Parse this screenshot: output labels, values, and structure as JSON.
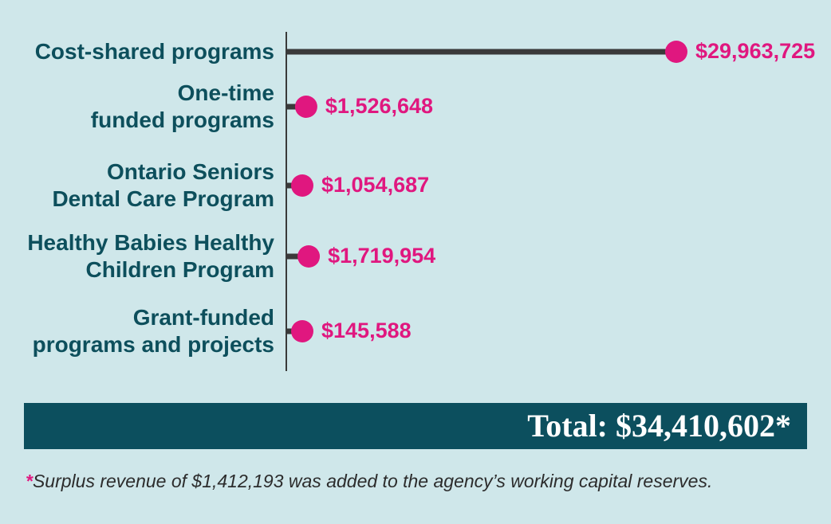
{
  "chart_data": {
    "type": "bar",
    "orientation": "horizontal",
    "style": "lollipop",
    "categories": [
      [
        "Cost-shared programs"
      ],
      [
        "One-time",
        "funded programs"
      ],
      [
        "Ontario Seniors",
        "Dental Care Program"
      ],
      [
        "Healthy Babies Healthy",
        "Children Program"
      ],
      [
        "Grant-funded",
        "programs and projects"
      ]
    ],
    "values": [
      29963725,
      1526648,
      1054687,
      1719954,
      145588
    ],
    "value_labels": [
      "$29,963,725",
      "$1,526,648",
      "$1,054,687",
      "$1,719,954",
      "$145,588"
    ],
    "xlim": [
      0,
      29963725
    ],
    "grid": false,
    "title": "",
    "xlabel": "",
    "ylabel": ""
  },
  "total": {
    "label": "Total: $34,410,602*"
  },
  "footnote": {
    "star": "*",
    "text": "Surplus revenue of $1,412,193 was added to the agency’s working capital reserves."
  },
  "colors": {
    "background": "#cfe7ea",
    "stem": "#3a3a3a",
    "dot": "#e0177f",
    "label": "#0d4f5c",
    "banner": "#0c4f5e"
  }
}
